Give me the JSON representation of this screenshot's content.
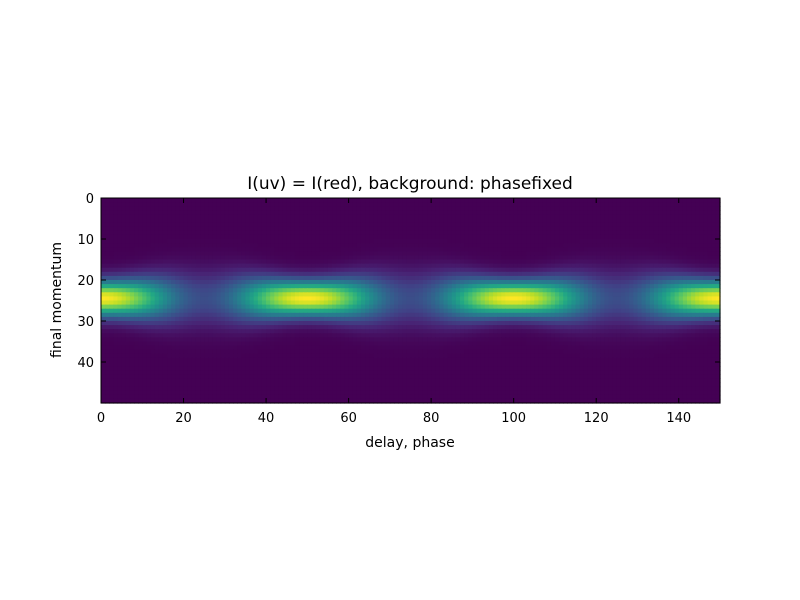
{
  "chart_data": {
    "type": "heatmap",
    "title": "I(uv) = I(red), background: phasefixed",
    "xlabel": "delay, phase",
    "ylabel": "final momentum",
    "xlim": [
      0,
      150
    ],
    "ylim": [
      50,
      0
    ],
    "x_ticks": [
      0,
      20,
      40,
      60,
      80,
      100,
      120,
      140
    ],
    "y_ticks": [
      0,
      10,
      20,
      30,
      40
    ],
    "colormap": "viridis",
    "grid": false,
    "n_x": 150,
    "n_y": 50,
    "center_momentum": 24.5,
    "period": 50,
    "peak_delays": [
      0,
      50,
      100,
      150
    ],
    "trough_delays": [
      25,
      75,
      125
    ],
    "values_description_sampled": {
      "row_center_profile_at_peak": [
        1.0
      ],
      "row_center_profile_at_trough": [
        0.45
      ]
    }
  }
}
